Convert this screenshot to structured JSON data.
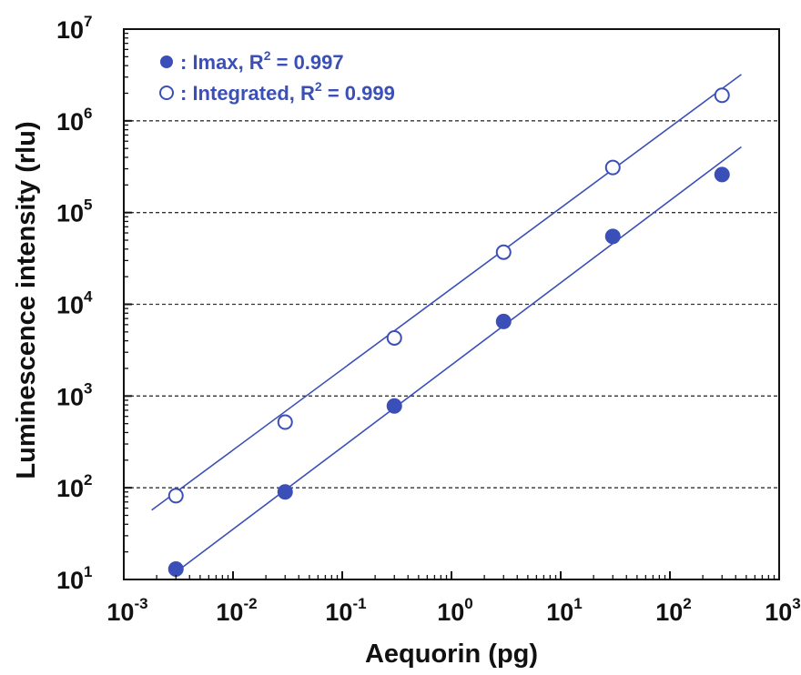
{
  "chart_data": {
    "type": "scatter",
    "xlabel": "Aequorin (pg)",
    "ylabel": "Luminescence intensity (rlu)",
    "x_scale": "log",
    "y_scale": "log",
    "xlim": [
      0.001,
      1000
    ],
    "ylim": [
      10,
      10000000
    ],
    "x_ticks": [
      {
        "base": "10",
        "exp": "-3",
        "value": 0.001
      },
      {
        "base": "10",
        "exp": "-2",
        "value": 0.01
      },
      {
        "base": "10",
        "exp": "-1",
        "value": 0.1
      },
      {
        "base": "10",
        "exp": "0",
        "value": 1
      },
      {
        "base": "10",
        "exp": "1",
        "value": 10
      },
      {
        "base": "10",
        "exp": "2",
        "value": 100
      },
      {
        "base": "10",
        "exp": "3",
        "value": 1000
      }
    ],
    "y_ticks": [
      {
        "base": "10",
        "exp": "1",
        "value": 10
      },
      {
        "base": "10",
        "exp": "2",
        "value": 100
      },
      {
        "base": "10",
        "exp": "3",
        "value": 1000
      },
      {
        "base": "10",
        "exp": "4",
        "value": 10000
      },
      {
        "base": "10",
        "exp": "5",
        "value": 100000
      },
      {
        "base": "10",
        "exp": "6",
        "value": 1000000
      },
      {
        "base": "10",
        "exp": "7",
        "value": 10000000
      }
    ],
    "grid": "horizontal dashed",
    "legend_position": "top-left",
    "color": "#3b4fb8",
    "series": [
      {
        "legend_label": ": Imax, R",
        "legend_sup": "2",
        "legend_suffix": " = 0.997",
        "marker": "filled-circle",
        "x": [
          0.003,
          0.03,
          0.3,
          3,
          30,
          300
        ],
        "y": [
          13,
          90,
          780,
          6500,
          55000,
          260000
        ],
        "fit_line": {
          "x": [
            0.003,
            450
          ],
          "y": [
            12,
            520000
          ]
        }
      },
      {
        "legend_label": ": Integrated, R",
        "legend_sup": "2",
        "legend_suffix": " = 0.999",
        "marker": "open-circle",
        "x": [
          0.003,
          0.03,
          0.3,
          3,
          30,
          300
        ],
        "y": [
          82,
          520,
          4300,
          37000,
          310000,
          1900000
        ],
        "fit_line": {
          "x": [
            0.0018,
            450
          ],
          "y": [
            57,
            3200000
          ]
        }
      }
    ]
  }
}
